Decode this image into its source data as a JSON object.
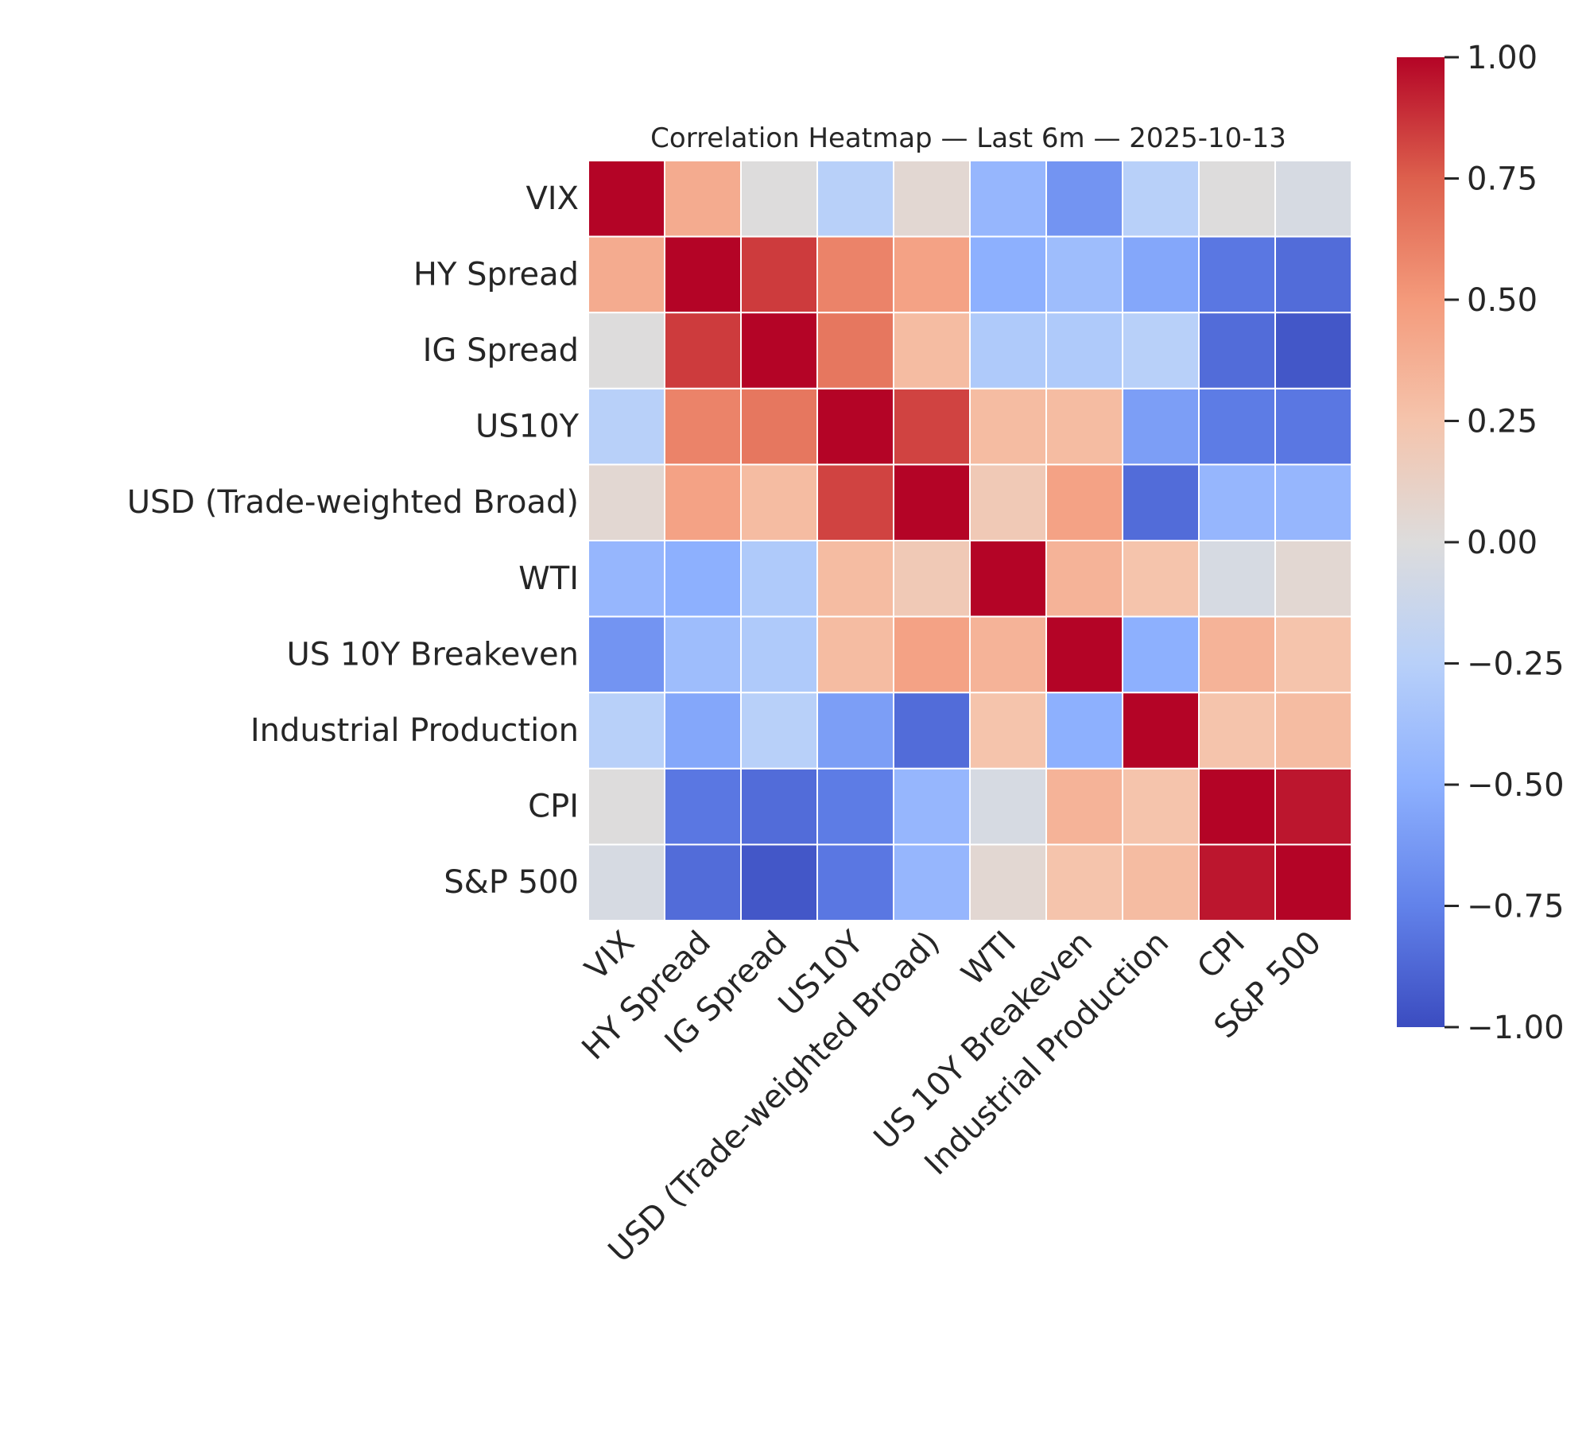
{
  "chart_data": {
    "type": "heatmap",
    "title": "Correlation Heatmap — Last 6m — 2025-10-13",
    "row_labels": [
      "VIX",
      "HY Spread",
      "IG Spread",
      "US10Y",
      "USD (Trade-weighted Broad)",
      "WTI",
      "US 10Y Breakeven",
      "Industrial Production",
      "CPI",
      "S&P 500"
    ],
    "col_labels": [
      "VIX",
      "HY Spread",
      "IG Spread",
      "US10Y",
      "USD (Trade-weighted Broad)",
      "WTI",
      "US 10Y Breakeven",
      "Industrial Production",
      "CPI",
      "S&P 500"
    ],
    "values": [
      [
        1.0,
        0.4,
        0.0,
        -0.25,
        0.05,
        -0.45,
        -0.65,
        -0.25,
        0.0,
        -0.05
      ],
      [
        0.4,
        1.0,
        0.85,
        0.6,
        0.45,
        -0.5,
        -0.4,
        -0.55,
        -0.8,
        -0.85
      ],
      [
        0.0,
        0.85,
        1.0,
        0.65,
        0.3,
        -0.3,
        -0.3,
        -0.25,
        -0.85,
        -0.95
      ],
      [
        -0.25,
        0.6,
        0.65,
        1.0,
        0.83,
        0.3,
        0.3,
        -0.6,
        -0.78,
        -0.8
      ],
      [
        0.05,
        0.45,
        0.3,
        0.83,
        1.0,
        0.2,
        0.45,
        -0.85,
        -0.45,
        -0.45
      ],
      [
        -0.45,
        -0.5,
        -0.3,
        0.3,
        0.2,
        1.0,
        0.35,
        0.25,
        -0.05,
        0.05
      ],
      [
        -0.65,
        -0.4,
        -0.3,
        0.3,
        0.45,
        0.35,
        1.0,
        -0.5,
        0.35,
        0.25
      ],
      [
        -0.25,
        -0.55,
        -0.25,
        -0.6,
        -0.85,
        0.25,
        -0.5,
        1.0,
        0.25,
        0.3
      ],
      [
        0.0,
        -0.8,
        -0.85,
        -0.78,
        -0.45,
        -0.05,
        0.35,
        0.25,
        1.0,
        0.95
      ],
      [
        -0.05,
        -0.85,
        -0.95,
        -0.8,
        -0.45,
        0.05,
        0.25,
        0.3,
        0.95,
        1.0
      ]
    ],
    "colorbar": {
      "range": [
        -1.0,
        1.0
      ],
      "ticks": [
        1.0,
        0.75,
        0.5,
        0.25,
        0.0,
        -0.25,
        -0.5,
        -0.75,
        -1.0
      ],
      "tick_labels": [
        "1.00",
        "0.75",
        "0.50",
        "0.25",
        "0.00",
        "−0.25",
        "−0.50",
        "−0.75",
        "−1.00"
      ],
      "colormap": "coolwarm",
      "colors": [
        "#3b4cc0",
        "#6282ea",
        "#8db0fe",
        "#b8d0f9",
        "#dddcdc",
        "#f5c4ac",
        "#f49a7b",
        "#dd604d",
        "#b40426"
      ]
    },
    "grid_line_color": "#ffffff"
  }
}
